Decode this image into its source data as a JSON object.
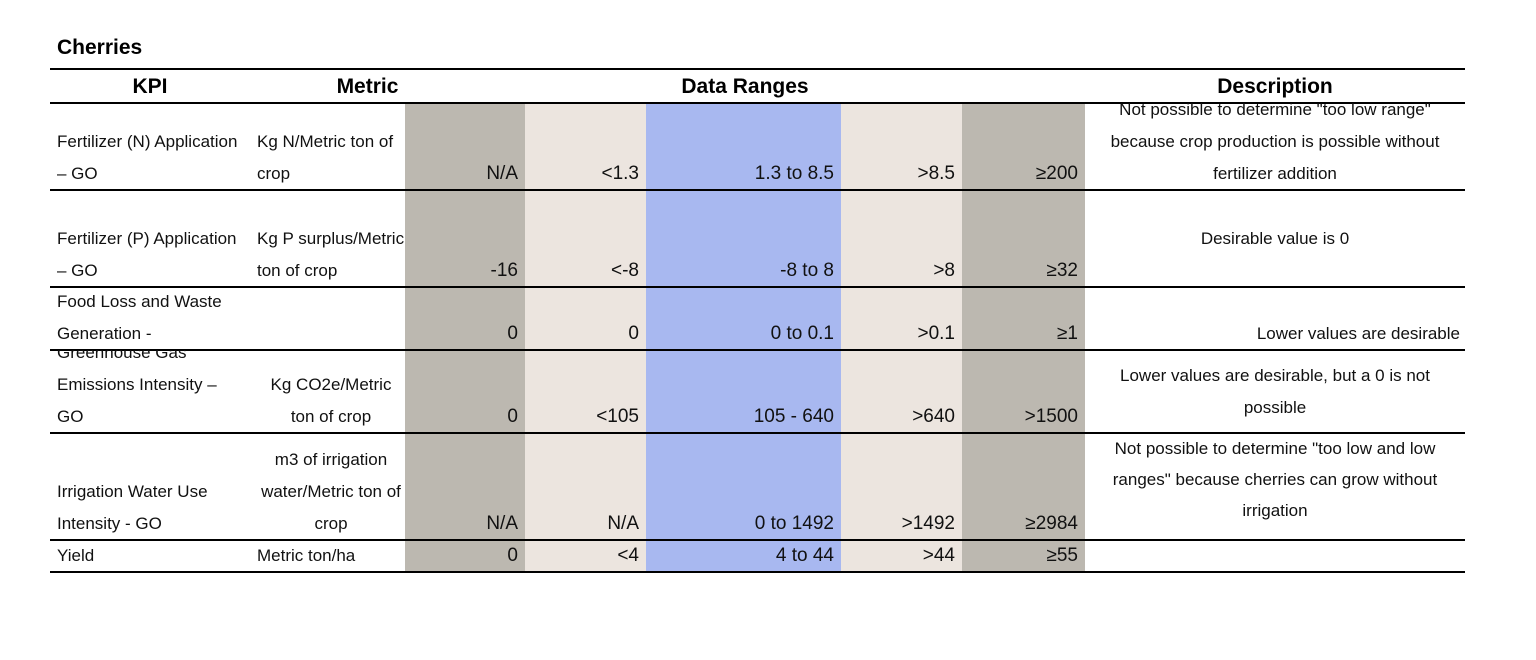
{
  "title": "Cherries",
  "table": {
    "headers": [
      "KPI",
      "Metric",
      "Data Ranges",
      "Description"
    ],
    "rows": [
      {
        "kpi": "Fertilizer (N) Application – GO",
        "metric": "Kg N/Metric ton of crop",
        "ranges": [
          "N/A",
          "<1.3",
          "1.3 to 8.5",
          ">8.5",
          "≥200"
        ],
        "description": "Not possible to determine \"too low range\" because crop production is possible without fertilizer addition"
      },
      {
        "kpi": "Fertilizer (P) Application – GO",
        "metric": "Kg P surplus/Metric ton of crop",
        "ranges": [
          "-16",
          "<-8",
          "-8 to 8",
          ">8",
          "≥32"
        ],
        "description": "Desirable value is 0"
      },
      {
        "kpi": "Food Loss and Waste Generation -",
        "metric": "",
        "ranges": [
          "0",
          "0",
          "0 to 0.1",
          ">0.1",
          "≥1"
        ],
        "description": "Lower values are desirable"
      },
      {
        "kpi": "Greenhouse Gas Emissions Intensity – GO",
        "metric": "Kg CO2e/Metric ton of crop",
        "ranges": [
          "0",
          "<105",
          "105 - 640",
          ">640",
          ">1500"
        ],
        "description": "Lower values are desirable, but a 0 is not possible"
      },
      {
        "kpi": "Irrigation Water Use Intensity - GO",
        "metric": "m3 of irrigation water/Metric ton of crop",
        "ranges": [
          "N/A",
          "N/A",
          "0 to 1492",
          ">1492",
          "≥2984"
        ],
        "description": "Not possible to determine \"too low and low ranges\" because cherries can grow without irrigation"
      },
      {
        "kpi": "Yield",
        "metric": "Metric ton/ha",
        "ranges": [
          "0",
          "<4",
          "4  to 44",
          ">44",
          "≥55"
        ],
        "description": ""
      }
    ]
  }
}
